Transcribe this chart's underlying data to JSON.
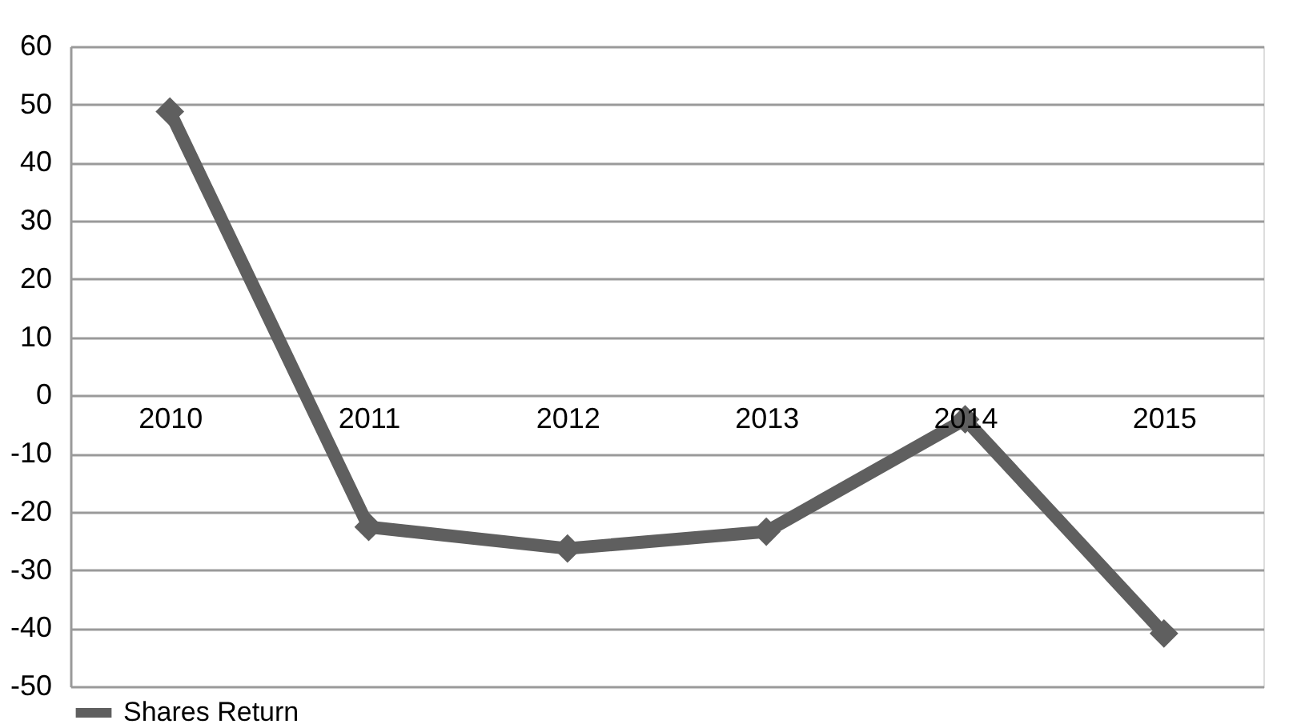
{
  "chart_data": {
    "type": "line",
    "categories": [
      "2010",
      "2011",
      "2012",
      "2013",
      "2014",
      "2015"
    ],
    "series": [
      {
        "name": "Shares Return",
        "color": "#5f5f5f",
        "values": [
          48.8,
          -22.6,
          -26.3,
          -23.4,
          -4.1,
          -40.9
        ]
      }
    ],
    "ylim": [
      -50,
      60
    ],
    "yticks": [
      -50,
      -40,
      -30,
      -20,
      -10,
      0,
      10,
      20,
      30,
      40,
      50,
      60
    ],
    "grid": "y",
    "legend": "bottom",
    "marker": "diamond",
    "line_style": "solid"
  }
}
